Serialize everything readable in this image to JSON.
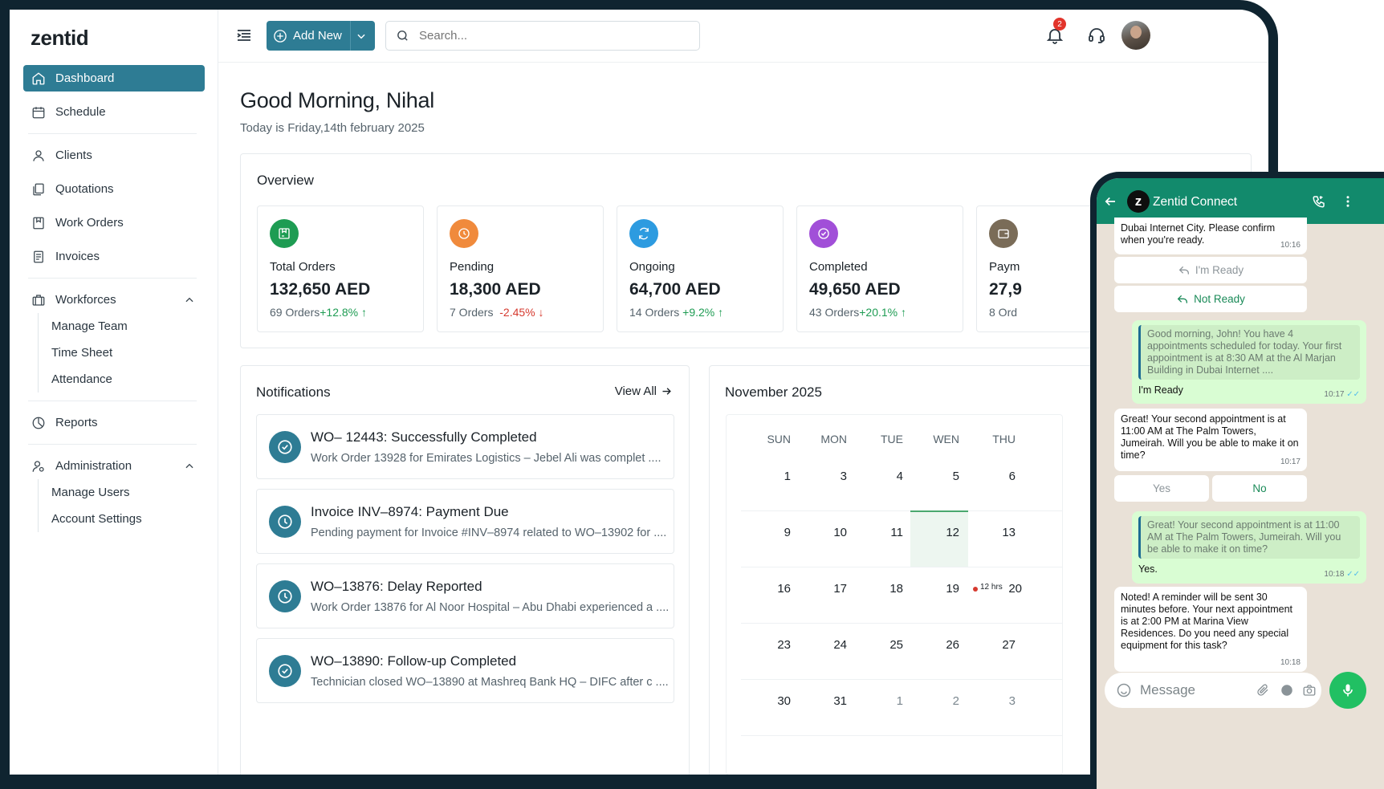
{
  "app": {
    "logo": "zentid"
  },
  "sidebar": {
    "items": [
      {
        "label": "Dashboard"
      },
      {
        "label": "Schedule"
      },
      {
        "label": "Clients"
      },
      {
        "label": "Quotations"
      },
      {
        "label": "Work Orders"
      },
      {
        "label": "Invoices"
      },
      {
        "label": "Workforces",
        "children": [
          "Manage Team",
          "Time Sheet",
          "Attendance"
        ]
      },
      {
        "label": "Reports"
      },
      {
        "label": "Administration",
        "children": [
          "Manage Users",
          "Account Settings"
        ]
      }
    ]
  },
  "header": {
    "add_new": "Add New",
    "search_placeholder": "Search...",
    "notification_count": "2"
  },
  "main": {
    "greeting": "Good Morning, Nihal",
    "date": "Today is Friday,14th february 2025",
    "overview_title": "Overview",
    "cards": [
      {
        "label": "Total Orders",
        "value": "132,650 AED",
        "orders": "69 Orders",
        "change": "+12.8%",
        "trend": "up",
        "color": "#1e9c53",
        "icon": "package-icon"
      },
      {
        "label": "Pending",
        "value": "18,300 AED",
        "orders": "7 Orders",
        "change": "-2.45%",
        "trend": "down",
        "color": "#f08a3c",
        "icon": "clock-icon"
      },
      {
        "label": "Ongoing",
        "value": "64,700 AED",
        "orders": "14 Orders",
        "change": "+9.2%",
        "trend": "up",
        "color": "#2d9be0",
        "icon": "refresh-icon"
      },
      {
        "label": "Completed",
        "value": "49,650 AED",
        "orders": "43 Orders",
        "change": "+20.1%",
        "trend": "up",
        "color": "#a14fd8",
        "icon": "check-circle-icon"
      },
      {
        "label": "Paym",
        "value": "27,9",
        "orders": "8 Ord",
        "change": "",
        "trend": "",
        "color": "#7a6c58",
        "icon": "wallet-icon"
      }
    ]
  },
  "notifications": {
    "title": "Notifications",
    "view_all": "View All",
    "items": [
      {
        "title": "WO– 12443: Successfully Completed",
        "desc": "Work Order 13928 for Emirates Logistics – Jebel Ali was complet ....",
        "icon": "check-circle-icon"
      },
      {
        "title": "Invoice INV–8974: Payment Due",
        "desc": "Pending payment for Invoice #INV–8974 related to WO–13902 for ....",
        "icon": "clock-icon"
      },
      {
        "title": "WO–13876: Delay Reported",
        "desc": "Work Order 13876 for Al Noor Hospital – Abu Dhabi experienced a  ....",
        "icon": "clock-icon"
      },
      {
        "title": "WO–13890: Follow-up Completed",
        "desc": "Technician closed WO–13890 at Mashreq Bank HQ – DIFC after c ....",
        "icon": "check-circle-icon"
      }
    ]
  },
  "calendar": {
    "title": "November 2025",
    "days_of_week": [
      "SUN",
      "MON",
      "TUE",
      "WEN",
      "THU"
    ],
    "weeks": [
      [
        "1",
        "3",
        "4",
        "5",
        "6"
      ],
      [
        "9",
        "10",
        "11",
        "12",
        "13"
      ],
      [
        "16",
        "17",
        "18",
        "19",
        "20"
      ],
      [
        "23",
        "24",
        "25",
        "26",
        "27"
      ],
      [
        "30",
        "31",
        "1",
        "2",
        "3"
      ]
    ],
    "event_label": "12 hrs"
  },
  "chat": {
    "title": "Zentid Connect",
    "messages": [
      {
        "text": "Dubai Internet City.  Please confirm when you're ready.",
        "time": "10:16"
      },
      {
        "quote": "Good morning, John! You have 4 appointments scheduled for today. Your first appointment is at 8:30 AM at the Al Marjan Building in Dubai Internet ....",
        "text": "I'm Ready",
        "time": "10:17"
      },
      {
        "text": "Great! Your second appointment is at 11:00 AM at The Palm Towers, Jumeirah. Will you be able to make it on time?",
        "time": "10:17"
      },
      {
        "quote": "Great! Your second appointment is at 11:00 AM at The Palm Towers, Jumeirah. Will you be able to make it on time?",
        "text": "Yes.",
        "time": "10:18"
      },
      {
        "text": "Noted! A reminder will be sent 30 minutes before. Your next appointment is at 2:00 PM at Marina View Residences. Do you need any special equipment for this task?",
        "time": "10:18"
      }
    ],
    "buttons": {
      "ready": "I'm Ready",
      "not_ready": "Not Ready",
      "yes": "Yes",
      "no": "No"
    },
    "input_placeholder": "Message"
  }
}
